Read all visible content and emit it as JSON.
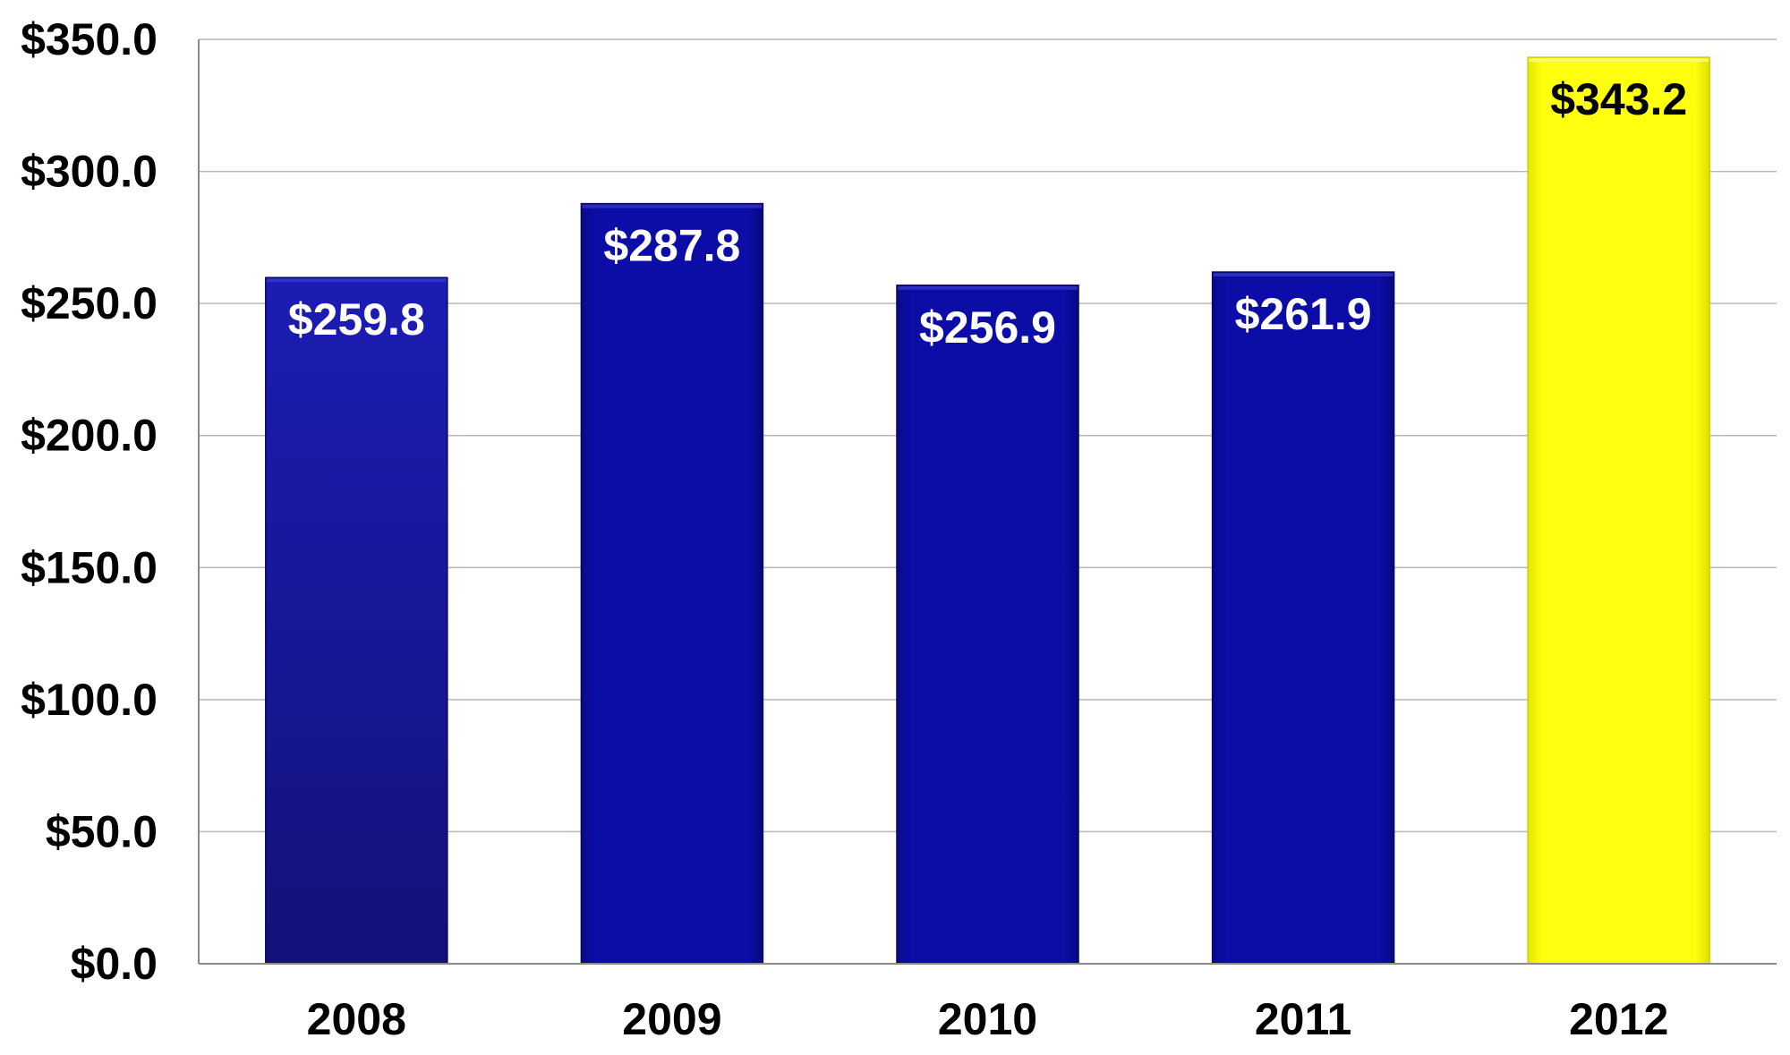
{
  "chart_data": {
    "type": "bar",
    "title": "",
    "xlabel": "",
    "ylabel": "",
    "categories": [
      "2008",
      "2009",
      "2010",
      "2011",
      "2012"
    ],
    "values": [
      259.8,
      287.8,
      256.9,
      261.9,
      343.2
    ],
    "data_labels": [
      "$259.8",
      "$287.8",
      "$256.9",
      "$261.9",
      "$343.2"
    ],
    "ylim": [
      0,
      350
    ],
    "yticks": [
      0,
      50,
      100,
      150,
      200,
      250,
      300,
      350
    ],
    "ytick_labels": [
      "$0.0",
      "$50.0",
      "$100.0",
      "$150.0",
      "$200.0",
      "$250.0",
      "$300.0",
      "$350.0"
    ],
    "grid": true,
    "legend": "none",
    "bar_colors": [
      "#17179f",
      "#0a0a9c",
      "#0a0a9c",
      "#0a0a9c",
      "#ffff00"
    ],
    "label_colors": [
      "#ffffff",
      "#ffffff",
      "#ffffff",
      "#ffffff",
      "#000000"
    ]
  }
}
